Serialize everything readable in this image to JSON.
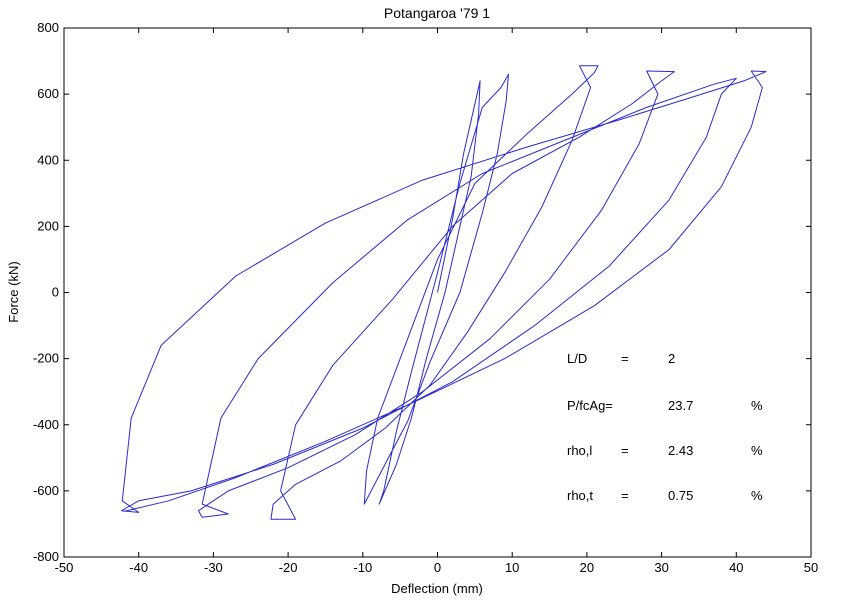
{
  "chart_data": {
    "type": "line",
    "title": "Potangaroa '79 1",
    "xlabel": "Deflection (mm)",
    "ylabel": "Force (kN)",
    "xlim": [
      -50,
      50
    ],
    "ylim": [
      -800,
      800
    ],
    "xticks": [
      -50,
      -40,
      -30,
      -20,
      -10,
      0,
      10,
      20,
      30,
      40,
      50
    ],
    "yticks": [
      -800,
      -600,
      -400,
      -200,
      0,
      200,
      400,
      600,
      800
    ],
    "grid": false,
    "line_color": "#2b2bcc",
    "series": [
      {
        "values_xy": [
          [
            0,
            0
          ],
          [
            2,
            220
          ],
          [
            3.5,
            420
          ],
          [
            4.5,
            520
          ],
          [
            5.5,
            620
          ],
          [
            5.7,
            640
          ],
          [
            5.5,
            540
          ],
          [
            4.5,
            350
          ],
          [
            3,
            200
          ],
          [
            1,
            0
          ],
          [
            -1.5,
            -200
          ],
          [
            -3.5,
            -380
          ],
          [
            -5.5,
            -520
          ],
          [
            -7.8,
            -640
          ],
          [
            -7.2,
            -600
          ],
          [
            -5.5,
            -420
          ],
          [
            -3.5,
            -240
          ],
          [
            0,
            60
          ],
          [
            3,
            330
          ],
          [
            6,
            560
          ],
          [
            8.5,
            620
          ],
          [
            9.5,
            660
          ],
          [
            9.2,
            580
          ],
          [
            8,
            420
          ],
          [
            6,
            240
          ],
          [
            3,
            0
          ],
          [
            -1,
            -210
          ],
          [
            -4,
            -390
          ],
          [
            -7.5,
            -540
          ],
          [
            -9.8,
            -640
          ],
          [
            -9.5,
            -540
          ],
          [
            -8,
            -380
          ],
          [
            -5,
            -200
          ],
          [
            0,
            100
          ],
          [
            5,
            330
          ],
          [
            12,
            480
          ],
          [
            18,
            600
          ],
          [
            21,
            665
          ],
          [
            21.5,
            686
          ],
          [
            19,
            686
          ],
          [
            20.5,
            620
          ],
          [
            18,
            460
          ],
          [
            14,
            260
          ],
          [
            9,
            60
          ],
          [
            4,
            -120
          ],
          [
            -1,
            -280
          ],
          [
            -7,
            -410
          ],
          [
            -13,
            -510
          ],
          [
            -19,
            -580
          ],
          [
            -22,
            -640
          ],
          [
            -22.3,
            -686
          ],
          [
            -19,
            -686
          ],
          [
            -21,
            -600
          ],
          [
            -19,
            -400
          ],
          [
            -14,
            -220
          ],
          [
            -6,
            -20
          ],
          [
            2,
            200
          ],
          [
            10,
            360
          ],
          [
            19,
            470
          ],
          [
            26,
            570
          ],
          [
            30,
            640
          ],
          [
            31.7,
            668
          ],
          [
            28,
            670
          ],
          [
            29.5,
            600
          ],
          [
            27,
            450
          ],
          [
            22,
            250
          ],
          [
            15,
            40
          ],
          [
            7,
            -140
          ],
          [
            -2,
            -300
          ],
          [
            -11,
            -430
          ],
          [
            -20,
            -530
          ],
          [
            -28,
            -600
          ],
          [
            -32,
            -660
          ],
          [
            -31.5,
            -680
          ],
          [
            -28,
            -670
          ],
          [
            -31.5,
            -640
          ],
          [
            -29,
            -380
          ],
          [
            -24,
            -200
          ],
          [
            -14,
            30
          ],
          [
            -4,
            220
          ],
          [
            6,
            360
          ],
          [
            17,
            460
          ],
          [
            28,
            560
          ],
          [
            37,
            630
          ],
          [
            40,
            648
          ],
          [
            38,
            600
          ],
          [
            36,
            470
          ],
          [
            31,
            280
          ],
          [
            23,
            80
          ],
          [
            13,
            -100
          ],
          [
            2,
            -270
          ],
          [
            -10,
            -410
          ],
          [
            -22,
            -520
          ],
          [
            -33,
            -600
          ],
          [
            -40,
            -630
          ],
          [
            -42.3,
            -660
          ],
          [
            -40,
            -665
          ],
          [
            -42.2,
            -630
          ],
          [
            -41,
            -380
          ],
          [
            -37,
            -160
          ],
          [
            -27,
            50
          ],
          [
            -15,
            210
          ],
          [
            -2,
            340
          ],
          [
            12,
            440
          ],
          [
            24,
            520
          ],
          [
            34,
            590
          ],
          [
            41,
            640
          ],
          [
            44,
            668
          ],
          [
            42,
            670
          ],
          [
            43.5,
            620
          ],
          [
            42,
            500
          ],
          [
            38,
            320
          ],
          [
            31,
            130
          ],
          [
            21,
            -40
          ],
          [
            9,
            -200
          ],
          [
            -3,
            -330
          ],
          [
            -15,
            -450
          ],
          [
            -27,
            -560
          ],
          [
            -36,
            -630
          ],
          [
            -42,
            -662
          ]
        ]
      }
    ],
    "annotations": [
      {
        "label": "L/D",
        "eq": "=",
        "value": "2",
        "unit": ""
      },
      {
        "label": "P/fcAg=",
        "eq": "",
        "value": "23.7",
        "unit": "%"
      },
      {
        "label": "rho,l",
        "eq": "=",
        "value": "2.43",
        "unit": "%"
      },
      {
        "label": "rho,t",
        "eq": "=",
        "value": "0.75",
        "unit": "%"
      }
    ]
  }
}
